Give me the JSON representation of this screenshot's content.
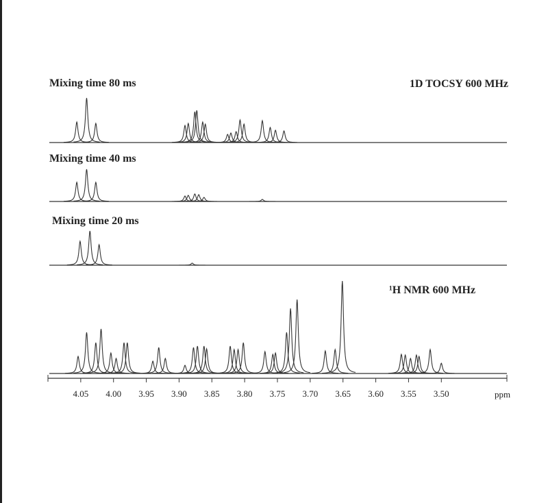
{
  "chart_data": {
    "type": "spectrum",
    "annotations": [
      "1D TOCSY 600 MHz"
    ],
    "x_label": "ppm",
    "xlim": [
      4.1,
      3.4
    ],
    "xticks": [
      4.05,
      {
        "value": 4,
        "label": "4.00"
      },
      3.95,
      {
        "value": 3.9,
        "label": "3.90"
      },
      3.85,
      {
        "value": 3.8,
        "label": "3.80"
      },
      3.75,
      {
        "value": 3.7,
        "label": "3.70"
      },
      3.65,
      {
        "value": 3.6,
        "label": "3.60"
      },
      3.55,
      {
        "value": 3.5,
        "label": "3.50"
      }
    ],
    "series": [
      {
        "name": "Mixing time 80 ms",
        "color": "#333333",
        "x": [
          4.056,
          4.041,
          4.027,
          3.891,
          3.886,
          3.876,
          3.873,
          3.864,
          3.86,
          3.826,
          3.821,
          3.813,
          3.807,
          3.801,
          3.773,
          3.761,
          3.753,
          3.74
        ],
        "values": [
          30,
          65,
          28,
          25,
          28,
          45,
          47,
          30,
          27,
          12,
          14,
          16,
          33,
          27,
          32,
          22,
          18,
          17
        ]
      },
      {
        "name": "Mixing time 40 ms",
        "color": "#333333",
        "x": [
          4.056,
          4.041,
          4.027,
          3.891,
          3.886,
          3.876,
          3.87,
          3.862,
          3.773
        ],
        "values": [
          28,
          47,
          28,
          8,
          9,
          11,
          10,
          6,
          3
        ]
      },
      {
        "name": "Mixing time 20 ms",
        "color": "#333333",
        "x": [
          4.051,
          4.036,
          4.022,
          3.88
        ],
        "values": [
          35,
          50,
          30,
          3
        ]
      },
      {
        "name": "¹H NMR 600 MHz",
        "color": "#333333",
        "x": [
          4.054,
          4.041,
          4.027,
          4.019,
          4.004,
          3.996,
          3.984,
          3.979,
          3.94,
          3.931,
          3.921,
          3.891,
          3.878,
          3.872,
          3.862,
          3.858,
          3.822,
          3.816,
          3.81,
          3.802,
          3.769,
          3.757,
          3.753,
          3.736,
          3.73,
          3.72,
          3.677,
          3.662,
          3.651,
          3.561,
          3.555,
          3.547,
          3.538,
          3.534,
          3.517,
          3.5
        ],
        "values": [
          25,
          60,
          45,
          65,
          30,
          22,
          45,
          45,
          18,
          38,
          22,
          12,
          38,
          40,
          40,
          36,
          40,
          35,
          35,
          45,
          32,
          28,
          30,
          60,
          95,
          108,
          33,
          35,
          135,
          28,
          27,
          22,
          27,
          25,
          35,
          15
        ]
      }
    ]
  }
}
